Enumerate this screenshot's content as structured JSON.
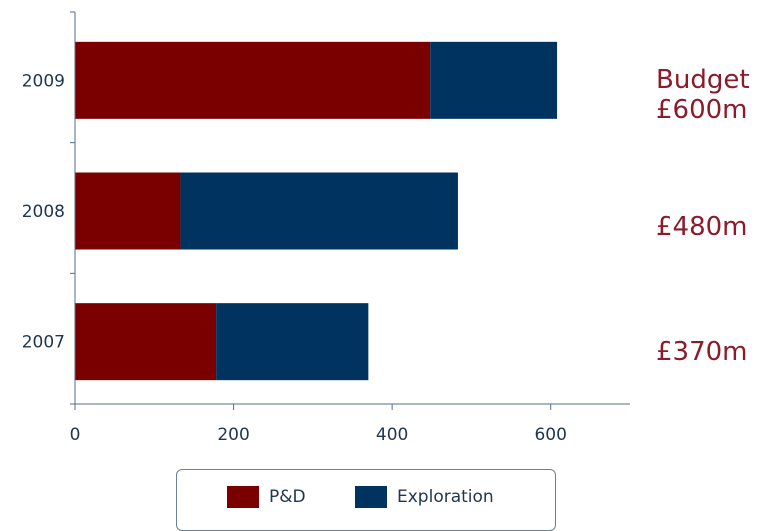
{
  "chart_data": {
    "type": "bar",
    "orientation": "horizontal",
    "stacked": true,
    "categories": [
      "2009",
      "2008",
      "2007"
    ],
    "series": [
      {
        "name": "P&D",
        "values": [
          448,
          133,
          178
        ],
        "color": "#7a0000"
      },
      {
        "name": "Exploration",
        "values": [
          160,
          350,
          192
        ],
        "color": "#00335f"
      }
    ],
    "xlim": [
      0,
      700
    ],
    "xticks": [
      0,
      200,
      400,
      600
    ],
    "grid": false,
    "legend_position": "bottom"
  },
  "annotations": [
    {
      "lines": [
        "Budget",
        "£600m"
      ]
    },
    {
      "lines": [
        "£480m"
      ]
    },
    {
      "lines": [
        "£370m"
      ]
    }
  ],
  "colors": {
    "axis": "#5a6d86",
    "text": "#1f3550",
    "annotation": "#8a1c2c"
  }
}
